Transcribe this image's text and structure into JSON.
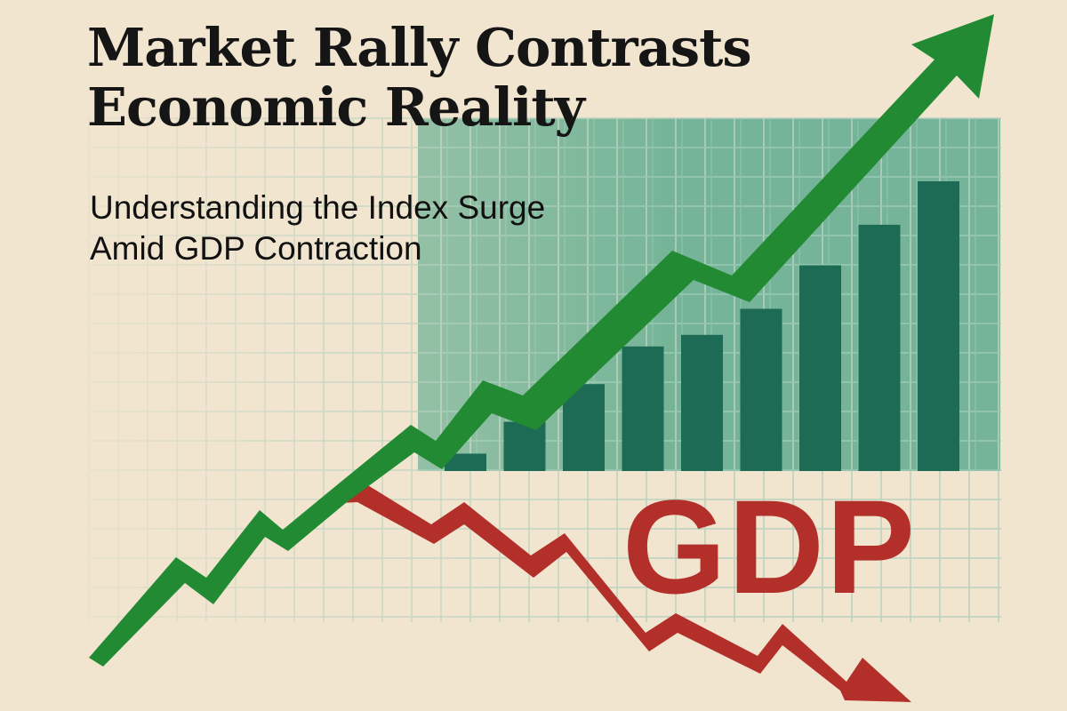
{
  "headline": {
    "line1": "Market Rally Contrasts",
    "line2": "Economic Reality"
  },
  "subheadline": {
    "line1": "Understanding the Index Surge",
    "line2": "Amid GDP Contraction"
  },
  "gdp_label": "GDP",
  "colors": {
    "background": "#f1e5cf",
    "grid_line": "#b9d2bf",
    "panel_fill": "#67ae91",
    "bar_fill": "#1d6b55",
    "rally_arrow": "#228a33",
    "decline_arrow": "#b3302a",
    "text": "#151515"
  },
  "illustration": {
    "bar_levels": [
      0.06,
      0.17,
      0.3,
      0.43,
      0.47,
      0.56,
      0.71,
      0.85,
      1.0
    ],
    "market_arrow_direction": "up",
    "gdp_arrow_direction": "down"
  }
}
